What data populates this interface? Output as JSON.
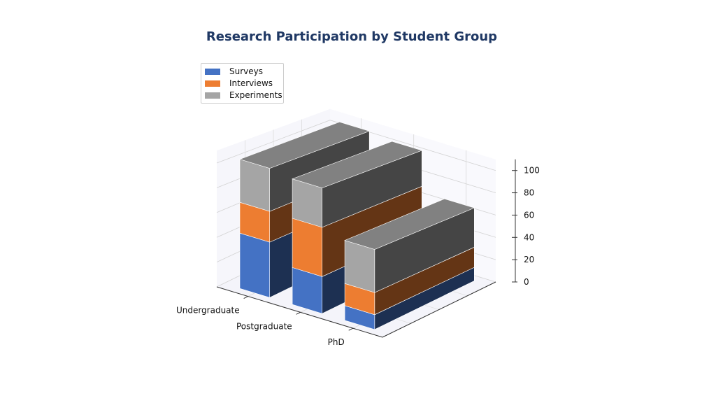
{
  "chart_data": {
    "type": "bar",
    "title": "Research Participation by Student Group",
    "categories": [
      "Undergraduate",
      "Postgraduate",
      "PhD"
    ],
    "series": [
      {
        "name": "Surveys",
        "values": [
          45,
          30,
          12
        ],
        "color": "#4472c4"
      },
      {
        "name": "Interviews",
        "values": [
          25,
          40,
          18
        ],
        "color": "#ed7d31"
      },
      {
        "name": "Experiments",
        "values": [
          35,
          32,
          35
        ],
        "color": "#a5a5a5"
      }
    ],
    "z_ticks": [
      "0",
      "20",
      "40",
      "60",
      "80",
      "100"
    ],
    "zlim": [
      0,
      110
    ],
    "stacked": true,
    "legend_position": "top-left",
    "grid": true
  }
}
